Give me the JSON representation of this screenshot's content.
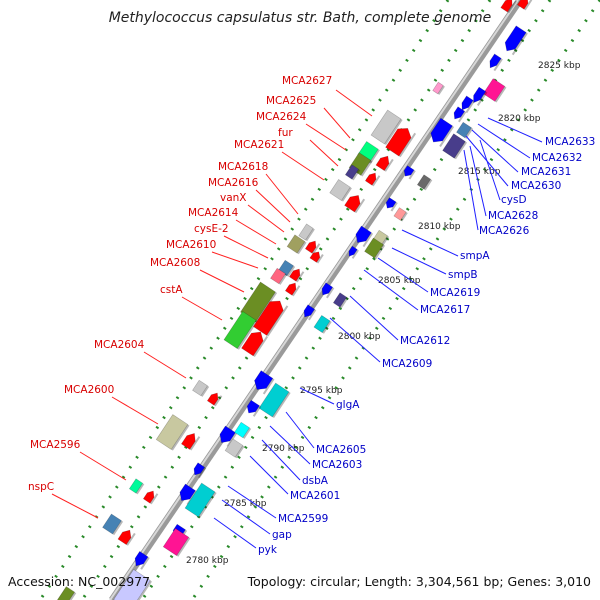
{
  "title": "Methylococcus capsulatus str. Bath, complete genome",
  "footer": {
    "accession": "Accession: NC_002977",
    "info": "Topology: circular; Length: 3,304,561 bp; Genes: 3,010"
  },
  "kbp_ticks": [
    "2825 kbp",
    "2820 kbp",
    "2815 kbp",
    "2810 kbp",
    "2805 kbp",
    "2800 kbp",
    "2795 kbp",
    "2790 kbp",
    "2785 kbp",
    "2780 kbp"
  ],
  "genes_left": [
    "MCA2627",
    "MCA2625",
    "MCA2624",
    "fur",
    "MCA2621",
    "MCA2618",
    "MCA2616",
    "vanX",
    "MCA2614",
    "cysE-2",
    "MCA2610",
    "MCA2608",
    "cstA",
    "MCA2604",
    "MCA2600",
    "MCA2596",
    "nspC"
  ],
  "genes_right": [
    "MCA2633",
    "MCA2632",
    "MCA2631",
    "MCA2630",
    "cysD",
    "MCA2628",
    "MCA2626",
    "smpA",
    "smpB",
    "MCA2619",
    "MCA2617",
    "MCA2612",
    "MCA2609",
    "glgA",
    "MCA2605",
    "MCA2603",
    "dsbA",
    "MCA2601",
    "MCA2599",
    "gap",
    "pyk"
  ],
  "colors": {
    "forward": "#ff0000",
    "reverse": "#0000ff",
    "label_forward": "#d80000",
    "label_reverse": "#0000c8",
    "backbone": "#9a9a9a",
    "dots": "#2a8a2a"
  }
}
